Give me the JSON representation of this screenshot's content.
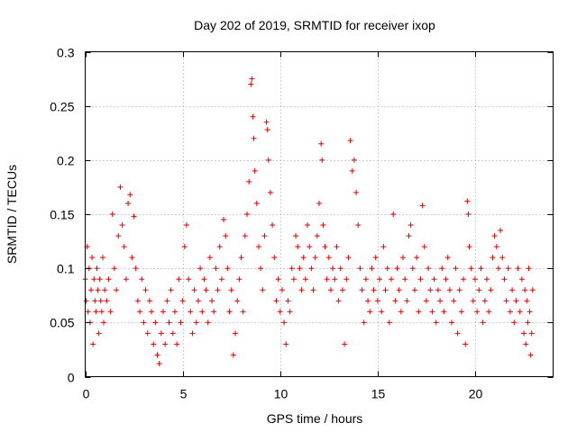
{
  "chart_data": {
    "type": "scatter",
    "title": "Day 202 of 2019, SRMTID for receiver ixop",
    "xlabel": "GPS time / hours",
    "ylabel": "SRMTID / TECUs",
    "xlim": [
      0,
      24
    ],
    "ylim": [
      0,
      0.3
    ],
    "xticks": [
      0,
      5,
      10,
      15,
      20
    ],
    "xtick_labels": [
      "0",
      "5",
      "10",
      "15",
      "20"
    ],
    "yticks": [
      0,
      0.05,
      0.1,
      0.15,
      0.2,
      0.25,
      0.3
    ],
    "ytick_labels": [
      "0",
      "0.05",
      "0.1",
      "0.15",
      "0.2",
      "0.25",
      "0.3"
    ],
    "grid": true,
    "marker": "+",
    "series_color": "#e00000",
    "series": [
      {
        "name": "SRMTID",
        "points": [
          [
            0.0,
            0.09
          ],
          [
            0.05,
            0.07
          ],
          [
            0.1,
            0.12
          ],
          [
            0.15,
            0.06
          ],
          [
            0.2,
            0.1
          ],
          [
            0.25,
            0.05
          ],
          [
            0.3,
            0.08
          ],
          [
            0.35,
            0.11
          ],
          [
            0.4,
            0.03
          ],
          [
            0.45,
            0.09
          ],
          [
            0.5,
            0.07
          ],
          [
            0.55,
            0.06
          ],
          [
            0.6,
            0.1
          ],
          [
            0.65,
            0.08
          ],
          [
            0.7,
            0.04
          ],
          [
            0.75,
            0.09
          ],
          [
            0.8,
            0.07
          ],
          [
            0.85,
            0.06
          ],
          [
            0.9,
            0.11
          ],
          [
            0.95,
            0.05
          ],
          [
            1.0,
            0.08
          ],
          [
            1.1,
            0.07
          ],
          [
            1.2,
            0.09
          ],
          [
            1.3,
            0.06
          ],
          [
            1.4,
            0.15
          ],
          [
            1.5,
            0.1
          ],
          [
            1.6,
            0.08
          ],
          [
            1.7,
            0.13
          ],
          [
            1.8,
            0.175
          ],
          [
            1.9,
            0.14
          ],
          [
            2.0,
            0.12
          ],
          [
            2.1,
            0.09
          ],
          [
            2.2,
            0.16
          ],
          [
            2.3,
            0.168
          ],
          [
            2.4,
            0.11
          ],
          [
            2.5,
            0.148
          ],
          [
            2.6,
            0.1
          ],
          [
            2.7,
            0.07
          ],
          [
            2.8,
            0.06
          ],
          [
            2.9,
            0.09
          ],
          [
            3.0,
            0.05
          ],
          [
            3.1,
            0.08
          ],
          [
            3.2,
            0.04
          ],
          [
            3.3,
            0.07
          ],
          [
            3.4,
            0.06
          ],
          [
            3.5,
            0.03
          ],
          [
            3.6,
            0.05
          ],
          [
            3.7,
            0.02
          ],
          [
            3.8,
            0.012
          ],
          [
            3.9,
            0.04
          ],
          [
            4.0,
            0.06
          ],
          [
            4.1,
            0.03
          ],
          [
            4.2,
            0.07
          ],
          [
            4.3,
            0.05
          ],
          [
            4.4,
            0.08
          ],
          [
            4.5,
            0.04
          ],
          [
            4.6,
            0.06
          ],
          [
            4.7,
            0.03
          ],
          [
            4.8,
            0.09
          ],
          [
            4.9,
            0.05
          ],
          [
            5.0,
            0.07
          ],
          [
            5.1,
            0.12
          ],
          [
            5.2,
            0.14
          ],
          [
            5.3,
            0.09
          ],
          [
            5.4,
            0.06
          ],
          [
            5.5,
            0.04
          ],
          [
            5.6,
            0.08
          ],
          [
            5.7,
            0.05
          ],
          [
            5.8,
            0.07
          ],
          [
            5.9,
            0.1
          ],
          [
            6.0,
            0.06
          ],
          [
            6.1,
            0.09
          ],
          [
            6.2,
            0.08
          ],
          [
            6.3,
            0.05
          ],
          [
            6.4,
            0.11
          ],
          [
            6.5,
            0.07
          ],
          [
            6.6,
            0.06
          ],
          [
            6.7,
            0.1
          ],
          [
            6.8,
            0.08
          ],
          [
            6.9,
            0.12
          ],
          [
            7.0,
            0.09
          ],
          [
            7.1,
            0.145
          ],
          [
            7.2,
            0.13
          ],
          [
            7.3,
            0.1
          ],
          [
            7.4,
            0.06
          ],
          [
            7.5,
            0.08
          ],
          [
            7.6,
            0.02
          ],
          [
            7.7,
            0.04
          ],
          [
            7.8,
            0.07
          ],
          [
            7.9,
            0.09
          ],
          [
            8.0,
            0.11
          ],
          [
            8.1,
            0.06
          ],
          [
            8.2,
            0.13
          ],
          [
            8.3,
            0.15
          ],
          [
            8.4,
            0.18
          ],
          [
            8.5,
            0.27
          ],
          [
            8.55,
            0.275
          ],
          [
            8.6,
            0.24
          ],
          [
            8.65,
            0.22
          ],
          [
            8.7,
            0.19
          ],
          [
            8.8,
            0.16
          ],
          [
            8.9,
            0.12
          ],
          [
            9.0,
            0.1
          ],
          [
            9.1,
            0.08
          ],
          [
            9.2,
            0.13
          ],
          [
            9.3,
            0.235
          ],
          [
            9.35,
            0.228
          ],
          [
            9.4,
            0.2
          ],
          [
            9.5,
            0.17
          ],
          [
            9.6,
            0.14
          ],
          [
            9.7,
            0.11
          ],
          [
            9.8,
            0.07
          ],
          [
            9.9,
            0.09
          ],
          [
            10.0,
            0.06
          ],
          [
            10.1,
            0.08
          ],
          [
            10.2,
            0.05
          ],
          [
            10.3,
            0.03
          ],
          [
            10.4,
            0.07
          ],
          [
            10.5,
            0.06
          ],
          [
            10.6,
            0.1
          ],
          [
            10.7,
            0.09
          ],
          [
            10.8,
            0.13
          ],
          [
            10.9,
            0.12
          ],
          [
            11.0,
            0.1
          ],
          [
            11.1,
            0.08
          ],
          [
            11.2,
            0.11
          ],
          [
            11.3,
            0.09
          ],
          [
            11.4,
            0.14
          ],
          [
            11.5,
            0.12
          ],
          [
            11.6,
            0.1
          ],
          [
            11.7,
            0.08
          ],
          [
            11.8,
            0.11
          ],
          [
            11.9,
            0.13
          ],
          [
            12.0,
            0.16
          ],
          [
            12.1,
            0.215
          ],
          [
            12.15,
            0.2
          ],
          [
            12.2,
            0.14
          ],
          [
            12.3,
            0.12
          ],
          [
            12.4,
            0.09
          ],
          [
            12.5,
            0.11
          ],
          [
            12.6,
            0.08
          ],
          [
            12.7,
            0.1
          ],
          [
            12.8,
            0.09
          ],
          [
            12.9,
            0.12
          ],
          [
            13.0,
            0.07
          ],
          [
            13.1,
            0.1
          ],
          [
            13.2,
            0.08
          ],
          [
            13.3,
            0.03
          ],
          [
            13.4,
            0.09
          ],
          [
            13.5,
            0.11
          ],
          [
            13.6,
            0.218
          ],
          [
            13.7,
            0.19
          ],
          [
            13.8,
            0.2
          ],
          [
            13.9,
            0.17
          ],
          [
            14.0,
            0.14
          ],
          [
            14.1,
            0.1
          ],
          [
            14.2,
            0.08
          ],
          [
            14.3,
            0.05
          ],
          [
            14.4,
            0.09
          ],
          [
            14.5,
            0.07
          ],
          [
            14.6,
            0.06
          ],
          [
            14.7,
            0.1
          ],
          [
            14.8,
            0.08
          ],
          [
            14.9,
            0.11
          ],
          [
            15.0,
            0.07
          ],
          [
            15.1,
            0.09
          ],
          [
            15.2,
            0.06
          ],
          [
            15.3,
            0.12
          ],
          [
            15.4,
            0.08
          ],
          [
            15.5,
            0.1
          ],
          [
            15.6,
            0.05
          ],
          [
            15.7,
            0.09
          ],
          [
            15.8,
            0.15
          ],
          [
            15.9,
            0.07
          ],
          [
            16.0,
            0.1
          ],
          [
            16.1,
            0.08
          ],
          [
            16.2,
            0.06
          ],
          [
            16.3,
            0.11
          ],
          [
            16.4,
            0.09
          ],
          [
            16.5,
            0.07
          ],
          [
            16.6,
            0.13
          ],
          [
            16.7,
            0.14
          ],
          [
            16.8,
            0.1
          ],
          [
            16.9,
            0.08
          ],
          [
            17.0,
            0.11
          ],
          [
            17.1,
            0.06
          ],
          [
            17.2,
            0.09
          ],
          [
            17.3,
            0.158
          ],
          [
            17.4,
            0.12
          ],
          [
            17.5,
            0.07
          ],
          [
            17.6,
            0.1
          ],
          [
            17.7,
            0.08
          ],
          [
            17.8,
            0.06
          ],
          [
            17.9,
            0.09
          ],
          [
            18.0,
            0.05
          ],
          [
            18.1,
            0.08
          ],
          [
            18.2,
            0.07
          ],
          [
            18.3,
            0.1
          ],
          [
            18.4,
            0.06
          ],
          [
            18.5,
            0.09
          ],
          [
            18.6,
            0.11
          ],
          [
            18.7,
            0.08
          ],
          [
            18.8,
            0.05
          ],
          [
            18.9,
            0.07
          ],
          [
            19.0,
            0.1
          ],
          [
            19.1,
            0.04
          ],
          [
            19.2,
            0.08
          ],
          [
            19.3,
            0.06
          ],
          [
            19.4,
            0.09
          ],
          [
            19.5,
            0.03
          ],
          [
            19.6,
            0.162
          ],
          [
            19.65,
            0.15
          ],
          [
            19.7,
            0.12
          ],
          [
            19.8,
            0.1
          ],
          [
            19.9,
            0.07
          ],
          [
            20.0,
            0.09
          ],
          [
            20.1,
            0.06
          ],
          [
            20.2,
            0.08
          ],
          [
            20.3,
            0.1
          ],
          [
            20.4,
            0.05
          ],
          [
            20.5,
            0.07
          ],
          [
            20.6,
            0.09
          ],
          [
            20.7,
            0.06
          ],
          [
            20.8,
            0.08
          ],
          [
            20.9,
            0.11
          ],
          [
            21.0,
            0.13
          ],
          [
            21.1,
            0.12
          ],
          [
            21.2,
            0.1
          ],
          [
            21.3,
            0.135
          ],
          [
            21.4,
            0.11
          ],
          [
            21.5,
            0.09
          ],
          [
            21.6,
            0.07
          ],
          [
            21.7,
            0.1
          ],
          [
            21.8,
            0.06
          ],
          [
            21.9,
            0.08
          ],
          [
            22.0,
            0.05
          ],
          [
            22.1,
            0.07
          ],
          [
            22.2,
            0.1
          ],
          [
            22.3,
            0.06
          ],
          [
            22.4,
            0.09
          ],
          [
            22.5,
            0.04
          ],
          [
            22.55,
            0.08
          ],
          [
            22.6,
            0.03
          ],
          [
            22.65,
            0.07
          ],
          [
            22.7,
            0.05
          ],
          [
            22.75,
            0.1
          ],
          [
            22.8,
            0.06
          ],
          [
            22.85,
            0.02
          ],
          [
            22.9,
            0.04
          ],
          [
            22.95,
            0.08
          ]
        ]
      }
    ]
  }
}
